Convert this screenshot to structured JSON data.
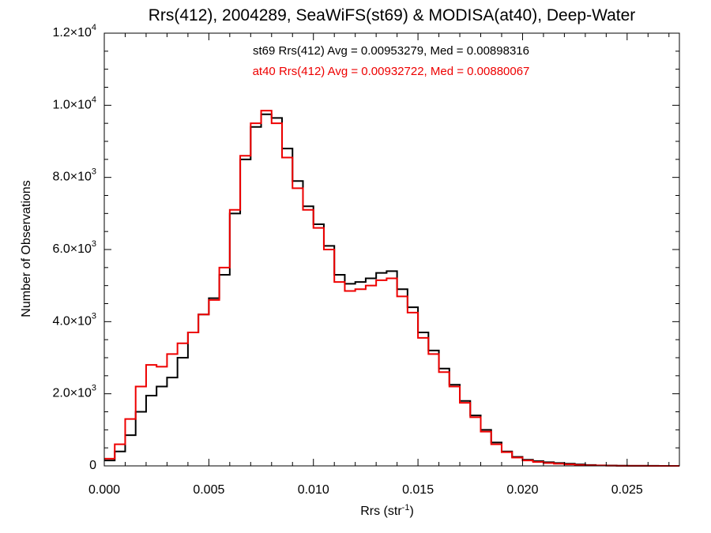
{
  "chart_data": {
    "type": "line",
    "title": "Rrs(412), 2004289, SeaWiFS(st69) & MODISA(at40), Deep-Water",
    "xlabel": "Rrs (str",
    "xlabel_sup": "-1",
    "xlabel_close": ")",
    "ylabel": "Number of Observations",
    "xlim": [
      0.0,
      0.0275
    ],
    "ylim": [
      0,
      12000
    ],
    "x_ticks": [
      {
        "value": 0.0,
        "label": "0.000"
      },
      {
        "value": 0.005,
        "label": "0.005"
      },
      {
        "value": 0.01,
        "label": "0.010"
      },
      {
        "value": 0.015,
        "label": "0.015"
      },
      {
        "value": 0.02,
        "label": "0.020"
      },
      {
        "value": 0.025,
        "label": "0.025"
      }
    ],
    "y_ticks": [
      {
        "value": 0,
        "base": "0",
        "exp": ""
      },
      {
        "value": 2000,
        "base": "2.0×10",
        "exp": "3"
      },
      {
        "value": 4000,
        "base": "4.0×10",
        "exp": "3"
      },
      {
        "value": 6000,
        "base": "6.0×10",
        "exp": "3"
      },
      {
        "value": 8000,
        "base": "8.0×10",
        "exp": "3"
      },
      {
        "value": 10000,
        "base": "1.0×10",
        "exp": "4"
      },
      {
        "value": 12000,
        "base": "1.2×10",
        "exp": "4"
      }
    ],
    "annotations": [
      {
        "text": "st69 Rrs(412) Avg = 0.00953279, Med = 0.00898316",
        "color": "#000000"
      },
      {
        "text": "at40 Rrs(412) Avg = 0.00932722, Med = 0.00880067",
        "color": "#ee0000"
      }
    ],
    "series": [
      {
        "color": "#000000",
        "x": [
          0.0,
          0.0005,
          0.001,
          0.0015,
          0.002,
          0.0025,
          0.003,
          0.0035,
          0.004,
          0.0045,
          0.005,
          0.0055,
          0.006,
          0.0065,
          0.007,
          0.0075,
          0.008,
          0.0085,
          0.009,
          0.0095,
          0.01,
          0.0105,
          0.011,
          0.0115,
          0.012,
          0.0125,
          0.013,
          0.0135,
          0.014,
          0.0145,
          0.015,
          0.0155,
          0.016,
          0.0165,
          0.017,
          0.0175,
          0.018,
          0.0185,
          0.019,
          0.0195,
          0.02,
          0.0205,
          0.021,
          0.0215,
          0.022,
          0.0225,
          0.023,
          0.0235,
          0.024,
          0.0245,
          0.025,
          0.0255,
          0.026,
          0.0265,
          0.027
        ],
        "values": [
          150,
          400,
          850,
          1500,
          1950,
          2200,
          2450,
          3000,
          3700,
          4200,
          4650,
          5300,
          7000,
          8500,
          9400,
          9750,
          9650,
          8800,
          7900,
          7200,
          6700,
          6100,
          5300,
          5050,
          5100,
          5200,
          5350,
          5400,
          4900,
          4400,
          3700,
          3200,
          2700,
          2250,
          1800,
          1400,
          1000,
          650,
          400,
          250,
          170,
          130,
          100,
          80,
          60,
          40,
          25,
          15,
          10,
          6,
          4,
          3,
          2,
          1,
          0
        ]
      },
      {
        "color": "#ee0000",
        "x": [
          0.0,
          0.0005,
          0.001,
          0.0015,
          0.002,
          0.0025,
          0.003,
          0.0035,
          0.004,
          0.0045,
          0.005,
          0.0055,
          0.006,
          0.0065,
          0.007,
          0.0075,
          0.008,
          0.0085,
          0.009,
          0.0095,
          0.01,
          0.0105,
          0.011,
          0.0115,
          0.012,
          0.0125,
          0.013,
          0.0135,
          0.014,
          0.0145,
          0.015,
          0.0155,
          0.016,
          0.0165,
          0.017,
          0.0175,
          0.018,
          0.0185,
          0.019,
          0.0195,
          0.02,
          0.0205,
          0.021,
          0.0215,
          0.022,
          0.0225,
          0.023,
          0.0235,
          0.024,
          0.0245,
          0.025,
          0.0255,
          0.026,
          0.0265,
          0.027
        ],
        "values": [
          200,
          600,
          1300,
          2200,
          2800,
          2750,
          3100,
          3400,
          3700,
          4200,
          4600,
          5500,
          7100,
          8600,
          9500,
          9850,
          9500,
          8550,
          7700,
          7100,
          6600,
          6000,
          5100,
          4850,
          4900,
          5000,
          5150,
          5200,
          4700,
          4250,
          3550,
          3100,
          2600,
          2200,
          1750,
          1350,
          950,
          600,
          380,
          230,
          150,
          110,
          80,
          60,
          40,
          25,
          15,
          10,
          6,
          4,
          3,
          2,
          1,
          0,
          0
        ]
      }
    ]
  }
}
